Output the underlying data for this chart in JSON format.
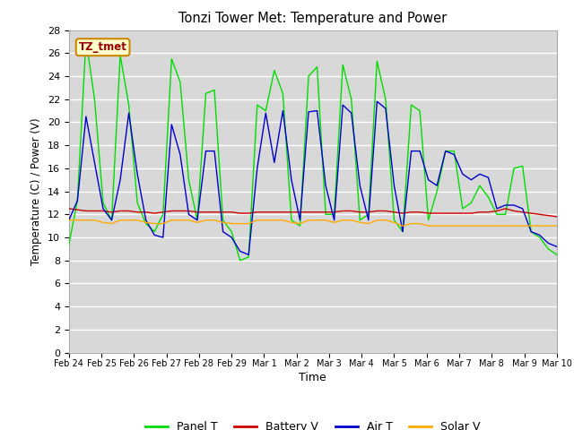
{
  "title": "Tonzi Tower Met: Temperature and Power",
  "xlabel": "Time",
  "ylabel": "Temperature (C) / Power (V)",
  "ylim": [
    0,
    28
  ],
  "yticks": [
    0,
    2,
    4,
    6,
    8,
    10,
    12,
    14,
    16,
    18,
    20,
    22,
    24,
    26,
    28
  ],
  "bg_color": "#d8d8d8",
  "grid_color": "#ffffff",
  "annotation_text": "TZ_tmet",
  "annotation_box_color": "#ffffcc",
  "annotation_border_color": "#cc8800",
  "annotation_text_color": "#990000",
  "x_labels": [
    "Feb 24",
    "Feb 25",
    "Feb 26",
    "Feb 27",
    "Feb 28",
    "Feb 29",
    "Mar 1",
    "Mar 2",
    "Mar 3",
    "Mar 4",
    "Mar 5",
    "Mar 6",
    "Mar 7",
    "Mar 8",
    "Mar 9",
    "Mar 10"
  ],
  "legend": [
    "Panel T",
    "Battery V",
    "Air T",
    "Solar V"
  ],
  "legend_colors": [
    "#00dd00",
    "#cc0000",
    "#0000cc",
    "#ffaa00"
  ],
  "panel_t": [
    9.4,
    13.2,
    27.2,
    22.0,
    13.0,
    11.5,
    25.8,
    21.5,
    13.0,
    11.2,
    10.5,
    12.0,
    25.5,
    23.5,
    15.0,
    11.5,
    22.5,
    22.8,
    11.5,
    10.5,
    8.0,
    8.3,
    21.5,
    21.0,
    24.5,
    22.5,
    11.5,
    11.0,
    24.0,
    24.8,
    12.0,
    12.0,
    25.0,
    22.0,
    11.5,
    12.0,
    25.3,
    22.0,
    11.5,
    10.5,
    21.5,
    21.0,
    11.5,
    14.0,
    17.5,
    17.5,
    12.5,
    13.0,
    14.5,
    13.5,
    12.0,
    12.0,
    16.0,
    16.2,
    10.5,
    10.0,
    9.0,
    8.5
  ],
  "battery_v": [
    12.5,
    12.4,
    12.3,
    12.3,
    12.3,
    12.2,
    12.3,
    12.3,
    12.2,
    12.2,
    12.1,
    12.2,
    12.3,
    12.3,
    12.3,
    12.2,
    12.2,
    12.2,
    12.2,
    12.2,
    12.1,
    12.1,
    12.2,
    12.2,
    12.2,
    12.2,
    12.2,
    12.2,
    12.2,
    12.2,
    12.2,
    12.2,
    12.3,
    12.3,
    12.2,
    12.2,
    12.3,
    12.3,
    12.2,
    12.1,
    12.2,
    12.2,
    12.1,
    12.1,
    12.1,
    12.1,
    12.1,
    12.1,
    12.2,
    12.2,
    12.3,
    12.5,
    12.3,
    12.2,
    12.1,
    12.0,
    11.9,
    11.8
  ],
  "air_t": [
    11.5,
    13.2,
    20.5,
    16.5,
    12.5,
    11.5,
    15.0,
    20.8,
    15.5,
    11.5,
    10.2,
    10.0,
    19.8,
    17.2,
    12.0,
    11.5,
    17.5,
    17.5,
    10.5,
    10.0,
    8.8,
    8.5,
    16.0,
    20.8,
    16.5,
    21.0,
    15.0,
    11.5,
    20.9,
    21.0,
    14.5,
    11.5,
    21.5,
    20.8,
    14.5,
    11.5,
    21.8,
    21.2,
    14.5,
    10.5,
    17.5,
    17.5,
    15.0,
    14.5,
    17.5,
    17.2,
    15.5,
    15.0,
    15.5,
    15.2,
    12.5,
    12.8,
    12.8,
    12.5,
    10.5,
    10.2,
    9.5,
    9.2
  ],
  "solar_v": [
    11.5,
    11.5,
    11.5,
    11.5,
    11.3,
    11.2,
    11.5,
    11.5,
    11.5,
    11.3,
    11.2,
    11.2,
    11.5,
    11.5,
    11.5,
    11.3,
    11.5,
    11.5,
    11.3,
    11.2,
    11.2,
    11.2,
    11.5,
    11.5,
    11.5,
    11.5,
    11.3,
    11.2,
    11.5,
    11.5,
    11.5,
    11.3,
    11.5,
    11.5,
    11.3,
    11.2,
    11.5,
    11.5,
    11.3,
    11.0,
    11.2,
    11.2,
    11.0,
    11.0,
    11.0,
    11.0,
    11.0,
    11.0,
    11.0,
    11.0,
    11.0,
    11.0,
    11.0,
    11.0,
    11.0,
    11.0,
    11.0,
    11.0
  ]
}
